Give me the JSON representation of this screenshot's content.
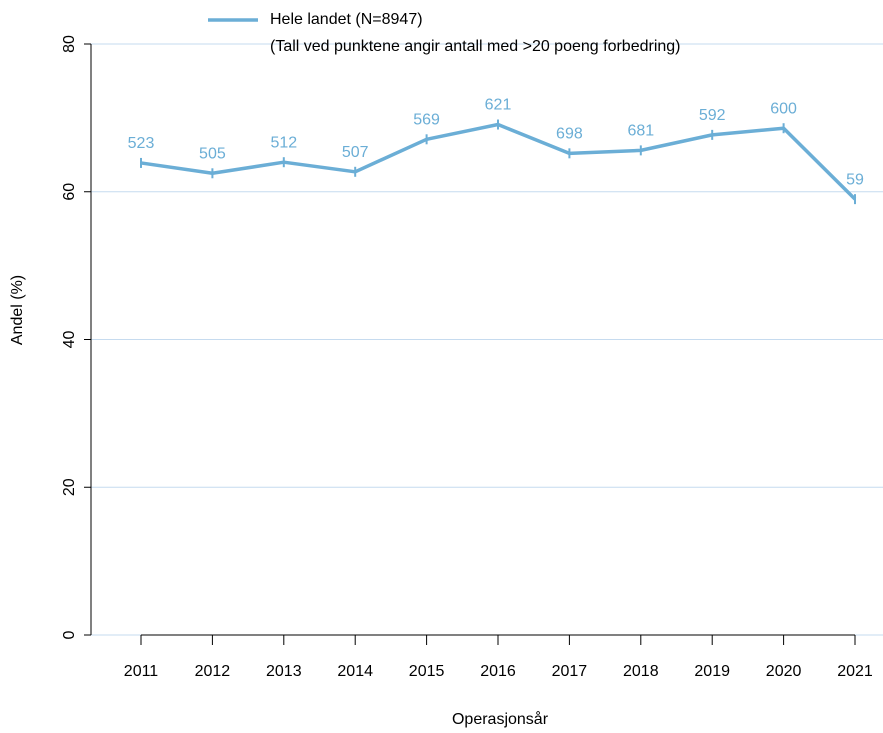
{
  "chart_data": {
    "type": "line",
    "xlabel": "Operasjonsår",
    "ylabel": "Andel (%)",
    "categories": [
      "2011",
      "2012",
      "2013",
      "2014",
      "2015",
      "2016",
      "2017",
      "2018",
      "2019",
      "2020",
      "2021"
    ],
    "series": [
      {
        "name": "Hele landet (N=8947)",
        "color": "#6baed6",
        "values": [
          63.9,
          62.5,
          64.0,
          62.7,
          67.1,
          69.1,
          65.2,
          65.6,
          67.7,
          68.6,
          59.0
        ]
      }
    ],
    "point_labels": [
      523,
      505,
      512,
      507,
      569,
      621,
      698,
      681,
      592,
      600,
      59
    ],
    "legend_note": "(Tall ved punktene angir antall med >20 poeng forbedring)",
    "ylim": [
      0,
      80
    ],
    "yticks": [
      0,
      20,
      40,
      60,
      80
    ],
    "grid": true,
    "grid_color": "#c6dbef"
  }
}
